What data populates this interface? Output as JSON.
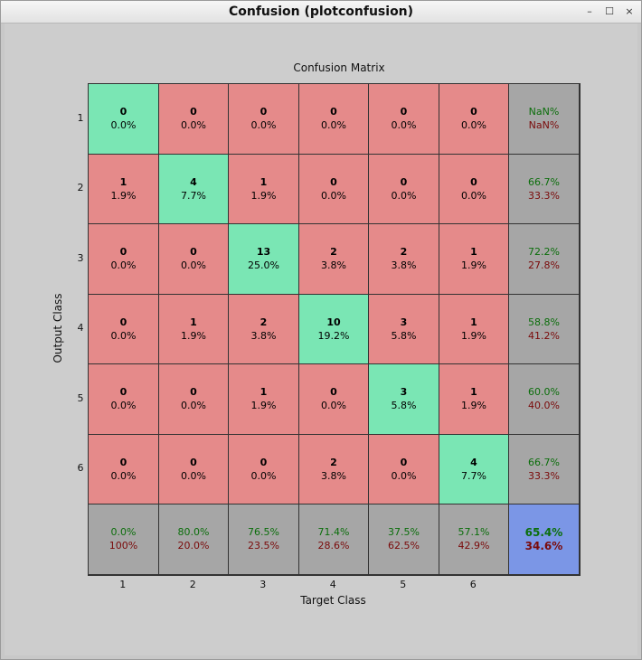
{
  "window": {
    "title": "Confusion (plotconfusion)",
    "controls": {
      "minimize": "–",
      "maximize": "☐",
      "close": "×"
    }
  },
  "chart_data": {
    "type": "heatmap",
    "title": "Confusion Matrix",
    "xlabel": "Target Class",
    "ylabel": "Output Class",
    "x_ticks": [
      "1",
      "2",
      "3",
      "4",
      "5",
      "6"
    ],
    "y_ticks": [
      "1",
      "2",
      "3",
      "4",
      "5",
      "6"
    ],
    "counts": [
      [
        0,
        0,
        0,
        0,
        0,
        0
      ],
      [
        1,
        4,
        1,
        0,
        0,
        0
      ],
      [
        0,
        0,
        13,
        2,
        2,
        1
      ],
      [
        0,
        1,
        2,
        10,
        3,
        1
      ],
      [
        0,
        0,
        1,
        0,
        3,
        1
      ],
      [
        0,
        0,
        0,
        2,
        0,
        4
      ]
    ],
    "percents": [
      [
        "0.0%",
        "0.0%",
        "0.0%",
        "0.0%",
        "0.0%",
        "0.0%"
      ],
      [
        "1.9%",
        "7.7%",
        "1.9%",
        "0.0%",
        "0.0%",
        "0.0%"
      ],
      [
        "0.0%",
        "0.0%",
        "25.0%",
        "3.8%",
        "3.8%",
        "1.9%"
      ],
      [
        "0.0%",
        "1.9%",
        "3.8%",
        "19.2%",
        "5.8%",
        "1.9%"
      ],
      [
        "0.0%",
        "0.0%",
        "1.9%",
        "0.0%",
        "5.8%",
        "1.9%"
      ],
      [
        "0.0%",
        "0.0%",
        "0.0%",
        "3.8%",
        "0.0%",
        "7.7%"
      ]
    ],
    "row_summary": [
      [
        "NaN%",
        "NaN%"
      ],
      [
        "66.7%",
        "33.3%"
      ],
      [
        "72.2%",
        "27.8%"
      ],
      [
        "58.8%",
        "41.2%"
      ],
      [
        "60.0%",
        "40.0%"
      ],
      [
        "66.7%",
        "33.3%"
      ]
    ],
    "col_summary": [
      [
        "0.0%",
        "100%"
      ],
      [
        "80.0%",
        "20.0%"
      ],
      [
        "76.5%",
        "23.5%"
      ],
      [
        "71.4%",
        "28.6%"
      ],
      [
        "37.5%",
        "62.5%"
      ],
      [
        "57.1%",
        "42.9%"
      ]
    ],
    "overall": [
      "65.4%",
      "34.6%"
    ],
    "colors": {
      "diagonal": "#7ae6b4",
      "off_diagonal": "#e58a8a",
      "summary": "#a6a6a6",
      "overall": "#7b96e6",
      "correct_text": "#0b6e0b",
      "wrong_text": "#7a0a0a"
    }
  }
}
